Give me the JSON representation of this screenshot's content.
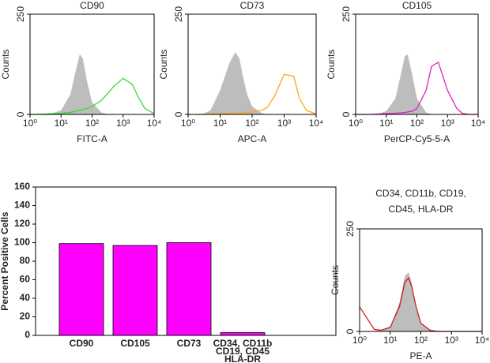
{
  "chart_data": [
    {
      "type": "line",
      "title": "CD90",
      "x_label": "FITC-A",
      "y_label": "Counts",
      "xscale": "log",
      "xlim": [
        1,
        10000
      ],
      "xticks": [
        {
          "value": 1,
          "label": "10⁰"
        },
        {
          "value": 10,
          "label": "10¹"
        },
        {
          "value": 100,
          "label": "10²"
        },
        {
          "value": 1000,
          "label": "10³"
        },
        {
          "value": 10000,
          "label": "10⁴"
        }
      ],
      "ylim": [
        0,
        250
      ],
      "yticks": [
        0,
        250
      ],
      "x": [
        1,
        3,
        5,
        10,
        20,
        30,
        40,
        50,
        70,
        100,
        200,
        300,
        500,
        1000,
        2000,
        3000,
        5000,
        10000
      ],
      "series": [
        {
          "color": "#bdbdbd",
          "filled": true,
          "values": [
            0,
            0,
            2,
            10,
            50,
            110,
            150,
            140,
            80,
            30,
            5,
            1,
            0,
            0,
            0,
            0,
            0,
            0
          ]
        },
        {
          "color": "#33dd33",
          "filled": false,
          "values": [
            0,
            1,
            2,
            3,
            5,
            8,
            10,
            12,
            15,
            20,
            35,
            50,
            70,
            90,
            75,
            45,
            15,
            2
          ]
        }
      ]
    },
    {
      "type": "line",
      "title": "CD73",
      "x_label": "APC-A",
      "y_label": "Counts",
      "xscale": "log",
      "xlim": [
        1,
        10000
      ],
      "xticks": [
        {
          "value": 1,
          "label": "10⁰"
        },
        {
          "value": 10,
          "label": "10¹"
        },
        {
          "value": 100,
          "label": "10²"
        },
        {
          "value": 1000,
          "label": "10³"
        },
        {
          "value": 10000,
          "label": "10⁴"
        }
      ],
      "ylim": [
        0,
        250
      ],
      "yticks": [
        0,
        250
      ],
      "x": [
        1,
        3,
        5,
        10,
        20,
        30,
        40,
        50,
        70,
        100,
        200,
        300,
        500,
        1000,
        2000,
        3000,
        5000,
        10000
      ],
      "series": [
        {
          "color": "#bdbdbd",
          "filled": true,
          "values": [
            0,
            2,
            10,
            60,
            130,
            155,
            140,
            100,
            50,
            20,
            3,
            0,
            0,
            0,
            0,
            0,
            0,
            0
          ]
        },
        {
          "color": "#ffa520",
          "filled": false,
          "values": [
            0,
            0,
            1,
            2,
            3,
            3,
            4,
            4,
            5,
            6,
            10,
            18,
            45,
            100,
            95,
            40,
            10,
            1
          ]
        }
      ]
    },
    {
      "type": "line",
      "title": "CD105",
      "x_label": "PerCP-Cy5-5-A",
      "y_label": "Counts",
      "xscale": "log",
      "xlim": [
        1,
        10000
      ],
      "xticks": [
        {
          "value": 1,
          "label": "10⁰"
        },
        {
          "value": 10,
          "label": "10¹"
        },
        {
          "value": 100,
          "label": "10²"
        },
        {
          "value": 1000,
          "label": "10³"
        },
        {
          "value": 10000,
          "label": "10⁴"
        }
      ],
      "ylim": [
        0,
        250
      ],
      "yticks": [
        0,
        250
      ],
      "x": [
        1,
        3,
        5,
        10,
        20,
        30,
        40,
        50,
        70,
        100,
        200,
        300,
        500,
        1000,
        2000,
        3000,
        5000,
        10000
      ],
      "series": [
        {
          "color": "#bdbdbd",
          "filled": true,
          "values": [
            0,
            0,
            1,
            8,
            40,
            100,
            145,
            150,
            100,
            40,
            5,
            1,
            0,
            0,
            0,
            0,
            0,
            0
          ]
        },
        {
          "color": "#e020c0",
          "filled": false,
          "values": [
            0,
            0,
            1,
            2,
            3,
            4,
            5,
            6,
            8,
            15,
            60,
            120,
            130,
            60,
            15,
            3,
            0,
            0
          ]
        }
      ]
    },
    {
      "type": "bar",
      "y_label": "Percent Positive Cells",
      "categories": [
        "CD90",
        "CD105",
        "CD73",
        "CD34, CD11b\nCD19, CD45\nHLA-DR"
      ],
      "values": [
        99,
        97,
        100,
        3
      ],
      "color": "#ff00ff",
      "ylim": [
        0,
        160
      ],
      "yticks": [
        0,
        20,
        40,
        60,
        80,
        100,
        120,
        140,
        160
      ]
    },
    {
      "type": "line",
      "title": "CD34, CD11b, CD19,\nCD45, HLA-DR",
      "x_label": "PE-A",
      "y_label": "Counts",
      "xscale": "log",
      "xlim": [
        1,
        10000
      ],
      "xticks": [
        {
          "value": 1,
          "label": "10⁰"
        },
        {
          "value": 10,
          "label": "10¹"
        },
        {
          "value": 100,
          "label": "10²"
        },
        {
          "value": 1000,
          "label": "10³"
        },
        {
          "value": 10000,
          "label": "10⁴"
        }
      ],
      "ylim": [
        0,
        250
      ],
      "yticks": [
        0,
        250
      ],
      "x": [
        1,
        3,
        5,
        10,
        20,
        30,
        40,
        50,
        70,
        100,
        200,
        300,
        500,
        1000,
        2000,
        3000,
        5000,
        10000
      ],
      "series": [
        {
          "color": "#bdbdbd",
          "filled": true,
          "values": [
            0,
            1,
            3,
            12,
            70,
            135,
            144,
            120,
            60,
            20,
            3,
            0,
            0,
            0,
            0,
            0,
            0,
            0
          ]
        },
        {
          "color": "#cc2222",
          "filled": false,
          "values": [
            60,
            5,
            3,
            10,
            60,
            120,
            130,
            110,
            60,
            20,
            3,
            1,
            0,
            0,
            0,
            0,
            0,
            0
          ]
        }
      ]
    }
  ]
}
